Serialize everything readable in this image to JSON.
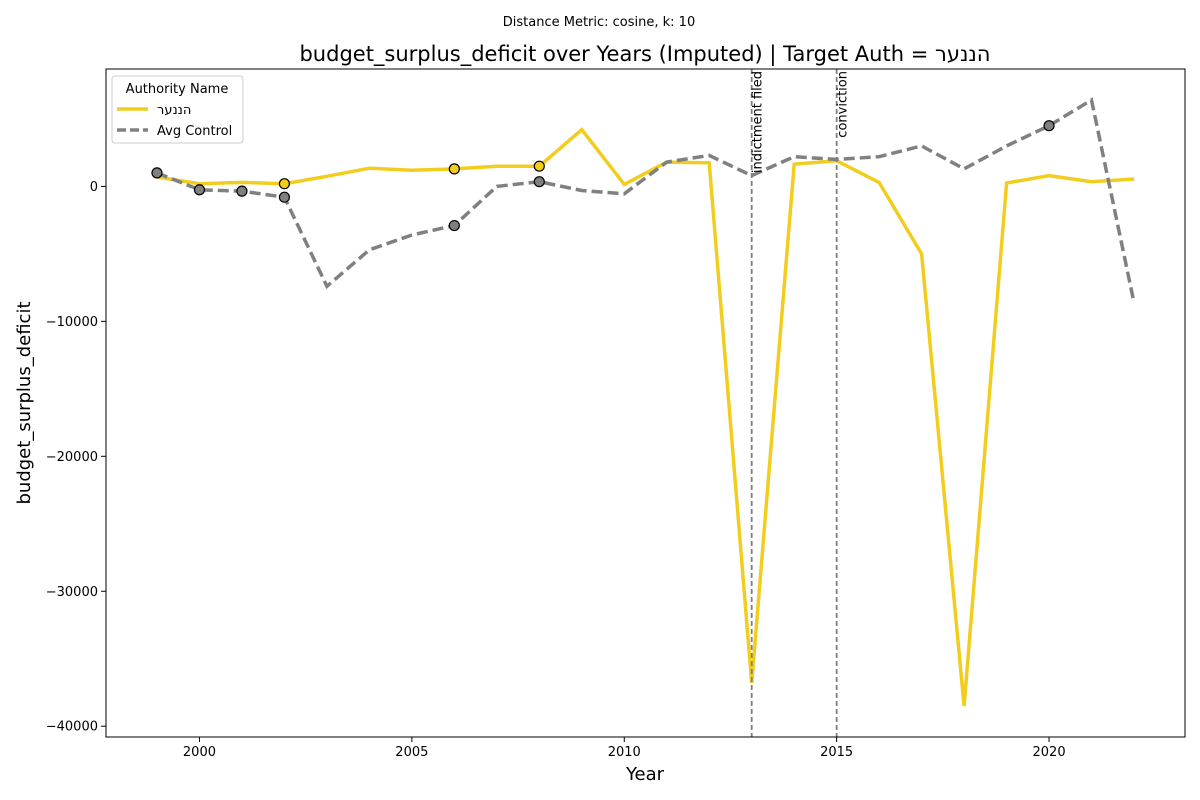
{
  "chart_data": {
    "type": "line",
    "suptitle": "Distance Metric: cosine, k: 10",
    "title": "budget_surplus_deficit over Years (Imputed) | Target Auth = הננער",
    "xlabel": "Year",
    "ylabel": "budget_surplus_deficit",
    "xlim": [
      1997.8,
      2023.2
    ],
    "ylim": [
      -40800,
      8700
    ],
    "xticks": [
      2000,
      2005,
      2010,
      2015,
      2020
    ],
    "yticks": [
      0,
      -10000,
      -20000,
      -30000,
      -40000
    ],
    "ytick_labels": [
      "0",
      "−10000",
      "−20000",
      "−30000",
      "−40000"
    ],
    "legend": {
      "title": "Authority Name",
      "placement": "upper left"
    },
    "series": [
      {
        "name": "הננער",
        "color": "#f2cd1e",
        "style": "solid",
        "x": [
          1999,
          2000,
          2001,
          2002,
          2003,
          2004,
          2005,
          2006,
          2007,
          2008,
          2009,
          2010,
          2011,
          2012,
          2013,
          2014,
          2015,
          2016,
          2017,
          2018,
          2019,
          2020,
          2021,
          2022
        ],
        "values": [
          700,
          200,
          300,
          200,
          750,
          1350,
          1200,
          1300,
          1500,
          1500,
          4200,
          150,
          1800,
          1750,
          -36800,
          1650,
          1900,
          300,
          -5000,
          -38500,
          250,
          800,
          350,
          550
        ],
        "observed_x": [
          2002,
          2006,
          2008
        ]
      },
      {
        "name": "Avg Control",
        "color": "#808080",
        "style": "dashed",
        "x": [
          1999,
          2000,
          2001,
          2002,
          2003,
          2004,
          2005,
          2006,
          2007,
          2008,
          2009,
          2010,
          2011,
          2012,
          2013,
          2014,
          2015,
          2016,
          2017,
          2018,
          2019,
          2020,
          2021,
          2022
        ],
        "values": [
          1000,
          -250,
          -350,
          -800,
          -7400,
          -4700,
          -3600,
          -2900,
          0,
          350,
          -300,
          -550,
          1800,
          2300,
          800,
          2200,
          2000,
          2200,
          3000,
          1300,
          3000,
          4500,
          6400,
          -8600
        ],
        "observed_x": [
          1999,
          2000,
          2001,
          2002,
          2006,
          2008,
          2020
        ]
      }
    ],
    "events": [
      {
        "x": 2013,
        "label": "indictment filed"
      },
      {
        "x": 2015,
        "label": "conviction"
      }
    ]
  }
}
